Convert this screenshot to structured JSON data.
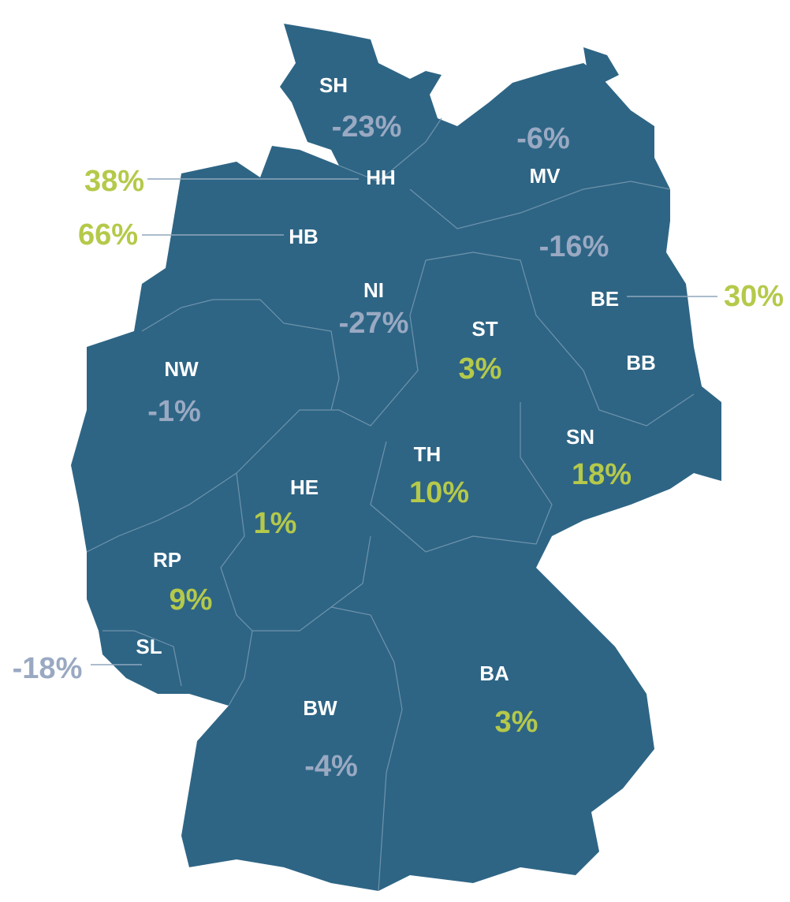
{
  "regions": [
    {
      "code": "SH",
      "value": "-23%",
      "color": "#9aa9c2"
    },
    {
      "code": "HH",
      "value": "38%",
      "color": "#b5c94a"
    },
    {
      "code": "MV",
      "value": "-6%",
      "color": "#9aa9c2"
    },
    {
      "code": "HB",
      "value": "66%",
      "color": "#b5c94a"
    },
    {
      "code": "BB",
      "value": "-16%",
      "color": "#9aa9c2"
    },
    {
      "code": "BE",
      "value": "30%",
      "color": "#b5c94a"
    },
    {
      "code": "NI",
      "value": "-27%",
      "color": "#9aa9c2"
    },
    {
      "code": "ST",
      "value": "3%",
      "color": "#b5c94a"
    },
    {
      "code": "NW",
      "value": "-1%",
      "color": "#9aa9c2"
    },
    {
      "code": "SN",
      "value": "18%",
      "color": "#b5c94a"
    },
    {
      "code": "TH",
      "value": "10%",
      "color": "#b5c94a"
    },
    {
      "code": "HE",
      "value": "1%",
      "color": "#b5c94a"
    },
    {
      "code": "RP",
      "value": "9%",
      "color": "#b5c94a"
    },
    {
      "code": "SL",
      "value": "-18%",
      "color": "#9aa9c2"
    },
    {
      "code": "BA",
      "value": "3%",
      "color": "#b5c94a"
    },
    {
      "code": "BW",
      "value": "-4%",
      "color": "#9aa9c2"
    }
  ]
}
